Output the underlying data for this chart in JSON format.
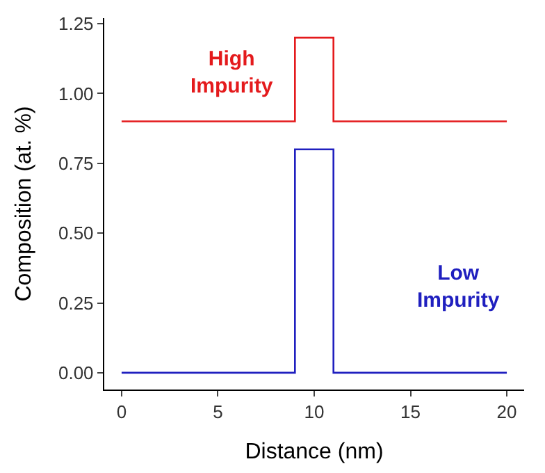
{
  "chart_data": {
    "type": "step",
    "xlabel": "Distance (nm)",
    "ylabel": "Composition (at. %)",
    "series": [
      {
        "name": "High Impurity",
        "color": "#e41a1c",
        "x": [
          0,
          9,
          11,
          20
        ],
        "values": [
          0.9,
          1.2,
          0.9,
          0.9
        ]
      },
      {
        "name": "Low Impurity",
        "color": "#1f1fbf",
        "x": [
          0,
          9,
          11,
          20
        ],
        "values": [
          0,
          0.8,
          0,
          0
        ]
      }
    ],
    "xlim": [
      -0.9,
      20.9
    ],
    "xticks": [
      0,
      5,
      10,
      15,
      20
    ],
    "ylim": [
      -0.06,
      1.27
    ],
    "yticks": [
      {
        "value": 0,
        "label": "0.00"
      },
      {
        "value": 0.25,
        "label": "0.25"
      },
      {
        "value": 0.5,
        "label": "0.50"
      },
      {
        "value": 0.75,
        "label": "0.75"
      },
      {
        "value": 1,
        "label": "1.00"
      },
      {
        "value": 1.25,
        "label": "1.25"
      }
    ],
    "legend": false
  }
}
